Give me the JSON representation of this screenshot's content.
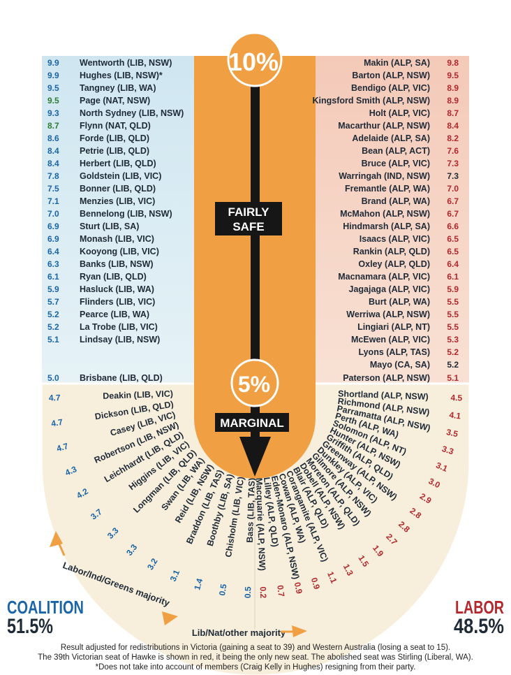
{
  "center": {
    "top_circle": "10%",
    "mid_circle": "5%",
    "label_safe_1": "FAIRLY",
    "label_safe_2": "SAFE",
    "label_marginal": "MARGINAL"
  },
  "coalition_safe": [
    {
      "margin": "9.9",
      "seat": "Wentworth (LIB, NSW)",
      "color": "#1a65a8"
    },
    {
      "margin": "9.9",
      "seat": "Hughes (LIB, NSW)*",
      "color": "#1a65a8"
    },
    {
      "margin": "9.5",
      "seat": "Tangney (LIB, WA)",
      "color": "#1a65a8"
    },
    {
      "margin": "9.5",
      "seat": "Page (NAT, NSW)",
      "color": "#2e7d32"
    },
    {
      "margin": "9.3",
      "seat": "North Sydney (LIB, NSW)",
      "color": "#1a65a8"
    },
    {
      "margin": "8.7",
      "seat": "Flynn (NAT, QLD)",
      "color": "#2e7d32"
    },
    {
      "margin": "8.6",
      "seat": "Forde (LIB, QLD)",
      "color": "#1a65a8"
    },
    {
      "margin": "8.4",
      "seat": "Petrie (LIB, QLD)",
      "color": "#1a65a8"
    },
    {
      "margin": "8.4",
      "seat": "Herbert (LIB, QLD)",
      "color": "#1a65a8"
    },
    {
      "margin": "7.8",
      "seat": "Goldstein (LIB, VIC)",
      "color": "#1a65a8"
    },
    {
      "margin": "7.5",
      "seat": "Bonner (LIB, QLD)",
      "color": "#1a65a8"
    },
    {
      "margin": "7.1",
      "seat": "Menzies (LIB, VIC)",
      "color": "#1a65a8"
    },
    {
      "margin": "7.0",
      "seat": "Bennelong (LIB, NSW)",
      "color": "#1a65a8"
    },
    {
      "margin": "6.9",
      "seat": "Sturt (LIB, SA)",
      "color": "#1a65a8"
    },
    {
      "margin": "6.9",
      "seat": "Monash (LIB, VIC)",
      "color": "#1a65a8"
    },
    {
      "margin": "6.4",
      "seat": "Kooyong (LIB, VIC)",
      "color": "#1a65a8"
    },
    {
      "margin": "6.3",
      "seat": "Banks (LIB, NSW)",
      "color": "#1a65a8"
    },
    {
      "margin": "6.1",
      "seat": "Ryan (LIB, QLD)",
      "color": "#1a65a8"
    },
    {
      "margin": "5.9",
      "seat": "Hasluck (LIB, WA)",
      "color": "#1a65a8"
    },
    {
      "margin": "5.7",
      "seat": "Flinders (LIB, VIC)",
      "color": "#1a65a8"
    },
    {
      "margin": "5.2",
      "seat": "Pearce (LIB, WA)",
      "color": "#1a65a8"
    },
    {
      "margin": "5.2",
      "seat": "La Trobe (LIB, VIC)",
      "color": "#1a65a8"
    },
    {
      "margin": "5.1",
      "seat": "Lindsay (LIB, NSW)",
      "color": "#1a65a8"
    }
  ],
  "coalition_boundary": {
    "margin": "5.0",
    "seat": "Brisbane (LIB, QLD)",
    "color": "#1a65a8"
  },
  "coalition_marginal": [
    {
      "margin": "4.7",
      "seat": "Deakin (LIB, VIC)"
    },
    {
      "margin": "4.7",
      "seat": "Dickson (LIB, QLD)"
    },
    {
      "margin": "4.7",
      "seat": "Casey (LIB, VIC)"
    },
    {
      "margin": "4.3",
      "seat": "Robertson (LIB, NSW)"
    },
    {
      "margin": "4.2",
      "seat": "Leichhardt (LIB, QLD)"
    },
    {
      "margin": "3.7",
      "seat": "Higgins (LIB, VIC)"
    },
    {
      "margin": "3.3",
      "seat": "Longman (LIB, QLD)"
    },
    {
      "margin": "3.3",
      "seat": "Swan (LIB, WA)"
    },
    {
      "margin": "3.2",
      "seat": "Reid (LIB, NSW)"
    },
    {
      "margin": "3.1",
      "seat": "Braddon (LIB, TAS)"
    },
    {
      "margin": "1.4",
      "seat": "Boothby (LIB, SA)"
    },
    {
      "margin": "0.5",
      "seat": "Chisholm (LIB, VIC)"
    },
    {
      "margin": "0.5",
      "seat": "Bass (LIB, TAS)"
    }
  ],
  "labor_safe": [
    {
      "margin": "9.8",
      "seat": "Makin (ALP, SA)",
      "color": "#b3282d"
    },
    {
      "margin": "9.5",
      "seat": "Barton (ALP, NSW)",
      "color": "#b3282d"
    },
    {
      "margin": "8.9",
      "seat": "Bendigo (ALP, VIC)",
      "color": "#b3282d"
    },
    {
      "margin": "8.9",
      "seat": "Kingsford Smith (ALP, NSW)",
      "color": "#b3282d"
    },
    {
      "margin": "8.7",
      "seat": "Holt (ALP, VIC)",
      "color": "#b3282d"
    },
    {
      "margin": "8.4",
      "seat": "Macarthur (ALP, NSW)",
      "color": "#b3282d"
    },
    {
      "margin": "8.2",
      "seat": "Adelaide (ALP, SA)",
      "color": "#b3282d"
    },
    {
      "margin": "7.6",
      "seat": "Bean (ALP, ACT)",
      "color": "#b3282d"
    },
    {
      "margin": "7.3",
      "seat": "Bruce (ALP, VIC)",
      "color": "#b3282d"
    },
    {
      "margin": "7.3",
      "seat": "Warringah (IND, NSW)",
      "color": "#1f2a37"
    },
    {
      "margin": "7.0",
      "seat": "Fremantle (ALP, WA)",
      "color": "#b3282d"
    },
    {
      "margin": "6.7",
      "seat": "Brand (ALP, WA)",
      "color": "#b3282d"
    },
    {
      "margin": "6.7",
      "seat": "McMahon (ALP, NSW)",
      "color": "#b3282d"
    },
    {
      "margin": "6.6",
      "seat": "Hindmarsh (ALP, SA)",
      "color": "#b3282d"
    },
    {
      "margin": "6.5",
      "seat": "Isaacs (ALP, VIC)",
      "color": "#b3282d"
    },
    {
      "margin": "6.5",
      "seat": "Rankin (ALP, QLD)",
      "color": "#b3282d"
    },
    {
      "margin": "6.4",
      "seat": "Oxley (ALP, QLD)",
      "color": "#b3282d"
    },
    {
      "margin": "6.1",
      "seat": "Macnamara (ALP, VIC)",
      "color": "#b3282d"
    },
    {
      "margin": "5.9",
      "seat": "Jagajaga (ALP, VIC)",
      "color": "#b3282d"
    },
    {
      "margin": "5.5",
      "seat": "Burt (ALP, WA)",
      "color": "#b3282d"
    },
    {
      "margin": "5.5",
      "seat": "Werriwa (ALP, NSW)",
      "color": "#b3282d"
    },
    {
      "margin": "5.5",
      "seat": "Lingiari (ALP, NT)",
      "color": "#b3282d"
    },
    {
      "margin": "5.3",
      "seat": "McEwen (ALP, VIC)",
      "color": "#b3282d"
    },
    {
      "margin": "5.2",
      "seat": "Lyons (ALP, TAS)",
      "color": "#b3282d"
    },
    {
      "margin": "5.2",
      "seat": "Mayo (CA, SA)",
      "color": "#1f2a37"
    }
  ],
  "labor_boundary": {
    "margin": "5.1",
    "seat": "Paterson (ALP, NSW)",
    "color": "#b3282d"
  },
  "labor_marginal": [
    {
      "margin": "4.5",
      "seat": "Shortland (ALP, NSW)"
    },
    {
      "margin": "4.1",
      "seat": "Richmond (ALP, NSW)"
    },
    {
      "margin": "3.5",
      "seat": "Parramatta (ALP, NSW)"
    },
    {
      "margin": "3.3",
      "seat": "Perth (ALP, WA)"
    },
    {
      "margin": "3.1",
      "seat": "Solomon (ALP, NT)"
    },
    {
      "margin": "3.0",
      "seat": "Hunter (ALP, NSW)"
    },
    {
      "margin": "2.9",
      "seat": "Griffith (ALP, QLD)"
    },
    {
      "margin": "2.8",
      "seat": "Greenway (ALP, NSW)"
    },
    {
      "margin": "2.8",
      "seat": "Dunkley (ALP, VIC)"
    },
    {
      "margin": "2.7",
      "seat": "Gilmore (ALP, NSW)"
    },
    {
      "margin": "1.9",
      "seat": "Moreton (ALP, QLD)"
    },
    {
      "margin": "1.5",
      "seat": "Dobell (ALP, NSW)"
    },
    {
      "margin": "1.3",
      "seat": "Blair (ALP, QLD)"
    },
    {
      "margin": "1.1",
      "seat": "Corangamite (ALP, VIC)"
    },
    {
      "margin": "0.9",
      "seat": "Cowan (ALP, WA)"
    },
    {
      "margin": "0.9",
      "seat": "Eden-Monaro (ALP, NSW)"
    },
    {
      "margin": "0.7",
      "seat": "Lilley (ALP, QLD)"
    },
    {
      "margin": "0.2",
      "seat": "Macquarie (ALP, NSW)"
    }
  ],
  "arc_labels": {
    "left": "Labor/Ind/Greens majority",
    "bottom": "Lib/Nat/other majority"
  },
  "totals": {
    "coalition_name": "COALITION",
    "coalition_pct": "51.5%",
    "labor_name": "LABOR",
    "labor_pct": "48.5%"
  },
  "footnotes": [
    "Result adjusted for redistributions in Victoria (gaining a seat to 39) and Western Australia (losing a seat to 15).",
    "The 39th Victorian seat of Hawke is shown in red, it being the only new seat. The abolished seat was Stirling (Liberal, WA).",
    "*Does not take into account of members (Craig Kelly in Hughes) resigning from their party."
  ],
  "colors": {
    "coalition": "#1a65a8",
    "labor": "#b3282d",
    "nationals": "#2e7d32",
    "independent": "#1f2a37",
    "orange": "#f0a042",
    "coalition_bg": "#d3e8f2",
    "labor_bg": "#f5d0c2",
    "marginal_bg": "#f7efdc"
  }
}
